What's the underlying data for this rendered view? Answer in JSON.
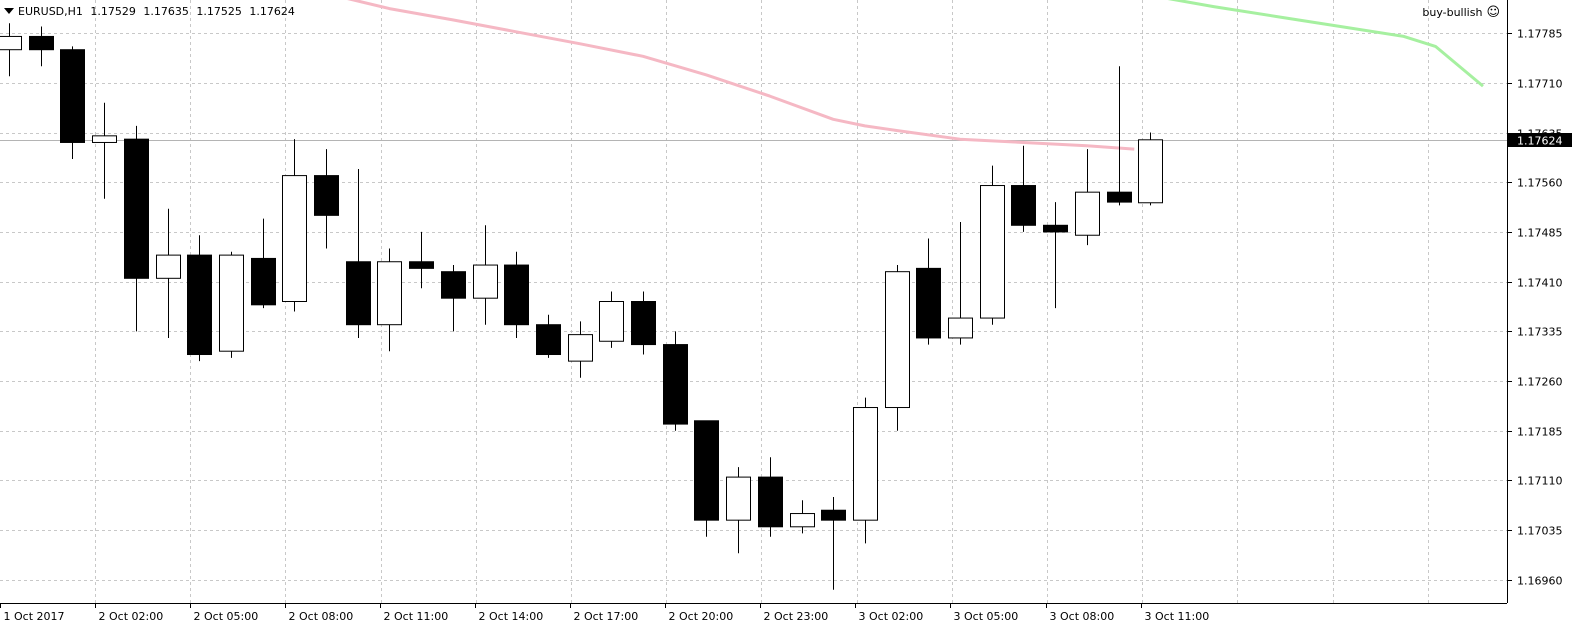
{
  "header": {
    "symbol": "EURUSD,H1",
    "open": "1.17529",
    "high": "1.17635",
    "low": "1.17525",
    "close": "1.17624"
  },
  "expert": {
    "name": "buy-bullish",
    "icon": "smiley-icon"
  },
  "colors": {
    "grid": "#c8c8c8",
    "bull_body": "#ffffff",
    "bear_body": "#000000",
    "wick": "#000000",
    "ma_pink": "#f5b8c4",
    "ma_green": "#a6f0a0",
    "price_tag_bg": "#000000",
    "price_tag_text": "#ffffff",
    "price_line": "#b4b4b4"
  },
  "chart_data": {
    "type": "candlestick",
    "timeframe": "H1",
    "ylim": [
      1.16925,
      1.17835
    ],
    "current_price": 1.17624,
    "y_ticks": [
      "1.17785",
      "1.17710",
      "1.17635",
      "1.17560",
      "1.17485",
      "1.17410",
      "1.17335",
      "1.17260",
      "1.17185",
      "1.17110",
      "1.17035",
      "1.16960"
    ],
    "x_labels": [
      {
        "index": 0,
        "label": "1 Oct 2017"
      },
      {
        "index": 3,
        "label": "2 Oct 02:00"
      },
      {
        "index": 6,
        "label": "2 Oct 05:00"
      },
      {
        "index": 9,
        "label": "2 Oct 08:00"
      },
      {
        "index": 12,
        "label": "2 Oct 11:00"
      },
      {
        "index": 15,
        "label": "2 Oct 14:00"
      },
      {
        "index": 18,
        "label": "2 Oct 17:00"
      },
      {
        "index": 21,
        "label": "2 Oct 20:00"
      },
      {
        "index": 24,
        "label": "2 Oct 23:00"
      },
      {
        "index": 27,
        "label": "3 Oct 02:00"
      },
      {
        "index": 30,
        "label": "3 Oct 05:00"
      },
      {
        "index": 33,
        "label": "3 Oct 08:00"
      },
      {
        "index": 36,
        "label": "3 Oct 11:00"
      }
    ],
    "candles": [
      {
        "o": 1.1776,
        "h": 1.178,
        "l": 1.1772,
        "c": 1.1778
      },
      {
        "o": 1.1778,
        "h": 1.17795,
        "l": 1.17735,
        "c": 1.1776
      },
      {
        "o": 1.1776,
        "h": 1.17765,
        "l": 1.17595,
        "c": 1.1762
      },
      {
        "o": 1.1762,
        "h": 1.1768,
        "l": 1.17535,
        "c": 1.1763
      },
      {
        "o": 1.17625,
        "h": 1.17645,
        "l": 1.17335,
        "c": 1.17415
      },
      {
        "o": 1.17415,
        "h": 1.1752,
        "l": 1.17325,
        "c": 1.1745
      },
      {
        "o": 1.1745,
        "h": 1.1748,
        "l": 1.1729,
        "c": 1.173
      },
      {
        "o": 1.17305,
        "h": 1.17455,
        "l": 1.17295,
        "c": 1.1745
      },
      {
        "o": 1.17445,
        "h": 1.17505,
        "l": 1.1737,
        "c": 1.17375
      },
      {
        "o": 1.1738,
        "h": 1.17625,
        "l": 1.17365,
        "c": 1.1757
      },
      {
        "o": 1.1757,
        "h": 1.1761,
        "l": 1.1746,
        "c": 1.1751
      },
      {
        "o": 1.1744,
        "h": 1.1758,
        "l": 1.17325,
        "c": 1.17345
      },
      {
        "o": 1.17345,
        "h": 1.1746,
        "l": 1.17305,
        "c": 1.1744
      },
      {
        "o": 1.1744,
        "h": 1.17485,
        "l": 1.174,
        "c": 1.1743
      },
      {
        "o": 1.17425,
        "h": 1.17435,
        "l": 1.17335,
        "c": 1.17385
      },
      {
        "o": 1.17385,
        "h": 1.17495,
        "l": 1.17345,
        "c": 1.17435
      },
      {
        "o": 1.17435,
        "h": 1.17455,
        "l": 1.17325,
        "c": 1.17345
      },
      {
        "o": 1.17345,
        "h": 1.1736,
        "l": 1.17295,
        "c": 1.173
      },
      {
        "o": 1.1729,
        "h": 1.1735,
        "l": 1.17265,
        "c": 1.1733
      },
      {
        "o": 1.1732,
        "h": 1.17395,
        "l": 1.1731,
        "c": 1.1738
      },
      {
        "o": 1.1738,
        "h": 1.17395,
        "l": 1.173,
        "c": 1.17315
      },
      {
        "o": 1.17315,
        "h": 1.17335,
        "l": 1.17185,
        "c": 1.17195
      },
      {
        "o": 1.172,
        "h": 1.172,
        "l": 1.17025,
        "c": 1.1705
      },
      {
        "o": 1.1705,
        "h": 1.1713,
        "l": 1.17,
        "c": 1.17115
      },
      {
        "o": 1.17115,
        "h": 1.17145,
        "l": 1.17025,
        "c": 1.1704
      },
      {
        "o": 1.1704,
        "h": 1.1708,
        "l": 1.1703,
        "c": 1.1706
      },
      {
        "o": 1.17065,
        "h": 1.17085,
        "l": 1.16945,
        "c": 1.1705
      },
      {
        "o": 1.1705,
        "h": 1.17235,
        "l": 1.17015,
        "c": 1.1722
      },
      {
        "o": 1.1722,
        "h": 1.17435,
        "l": 1.17185,
        "c": 1.17425
      },
      {
        "o": 1.1743,
        "h": 1.17475,
        "l": 1.17315,
        "c": 1.17325
      },
      {
        "o": 1.17325,
        "h": 1.175,
        "l": 1.17315,
        "c": 1.17355
      },
      {
        "o": 1.17355,
        "h": 1.17585,
        "l": 1.17345,
        "c": 1.17555
      },
      {
        "o": 1.17555,
        "h": 1.17615,
        "l": 1.17485,
        "c": 1.17495
      },
      {
        "o": 1.17495,
        "h": 1.1753,
        "l": 1.1737,
        "c": 1.17485
      },
      {
        "o": 1.1748,
        "h": 1.1761,
        "l": 1.17465,
        "c": 1.17545
      },
      {
        "o": 1.17545,
        "h": 1.17735,
        "l": 1.17525,
        "c": 1.1753
      },
      {
        "o": 1.17529,
        "h": 1.17635,
        "l": 1.17525,
        "c": 1.17624
      }
    ],
    "ma_pink": [
      [
        10,
        1.17845
      ],
      [
        12,
        1.17822
      ],
      [
        14,
        1.17805
      ],
      [
        16,
        1.17787
      ],
      [
        18,
        1.17769
      ],
      [
        20,
        1.1775
      ],
      [
        22,
        1.17722
      ],
      [
        24,
        1.1769
      ],
      [
        26,
        1.17655
      ],
      [
        27,
        1.17645
      ],
      [
        28,
        1.17638
      ],
      [
        30,
        1.17625
      ],
      [
        32,
        1.1762
      ],
      [
        34,
        1.17615
      ],
      [
        35.5,
        1.1761
      ]
    ],
    "ma_green": [
      [
        35.5,
        1.1785
      ],
      [
        36,
        1.17842
      ],
      [
        38,
        1.17825
      ],
      [
        40,
        1.1781
      ],
      [
        42,
        1.17795
      ],
      [
        44,
        1.1778
      ],
      [
        45,
        1.17765
      ],
      [
        46.5,
        1.17705
      ]
    ]
  }
}
